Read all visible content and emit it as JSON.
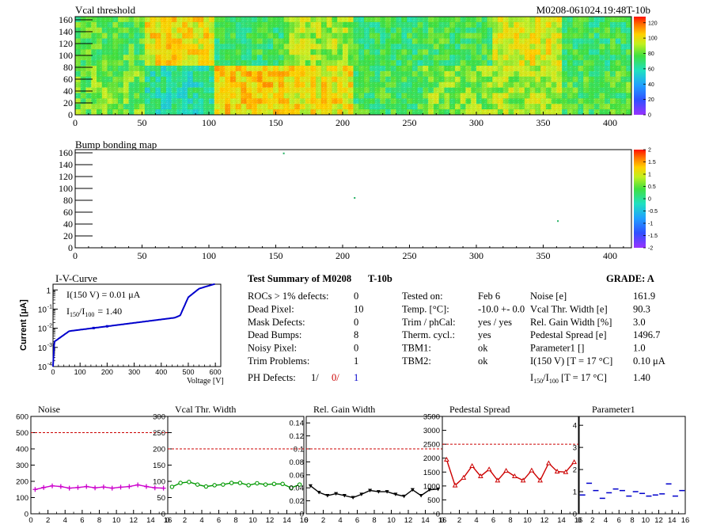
{
  "header": {
    "vcal_title": "Vcal threshold",
    "module_id": "M0208-061024.19:48T-10b",
    "bump_title": "Bump bonding map"
  },
  "maps": {
    "x_ticks": [
      "0",
      "50",
      "100",
      "150",
      "200",
      "250",
      "300",
      "350",
      "400"
    ],
    "x_tick_values": [
      0,
      50,
      100,
      150,
      200,
      250,
      300,
      350,
      400
    ],
    "x_range": [
      0,
      416
    ],
    "y_ticks": [
      "0",
      "20",
      "40",
      "60",
      "80",
      "100",
      "120",
      "140",
      "160"
    ],
    "y_tick_values": [
      0,
      20,
      40,
      60,
      80,
      100,
      120,
      140,
      160
    ],
    "y_range": [
      0,
      160
    ],
    "vcal_scale_ticks": [
      "120",
      "100",
      "80",
      "60",
      "40",
      "20",
      "0"
    ],
    "vcal_scale_values": [
      120,
      100,
      80,
      60,
      40,
      20,
      0
    ],
    "vcal_scale_range": [
      0,
      128
    ],
    "bump_scale_ticks": [
      "2",
      "1.5",
      "1",
      "0.5",
      "0",
      "-0.5",
      "-1",
      "-1.5",
      "-2"
    ],
    "bump_scale_values": [
      2,
      1.5,
      1,
      0.5,
      0,
      -0.5,
      -1,
      -1.5,
      -2
    ],
    "bump_scale_range": [
      -2,
      2
    ],
    "rocs_top_level": [
      75,
      95,
      70,
      85,
      70,
      72,
      92,
      70
    ],
    "rocs_bottom_level": [
      78,
      62,
      98,
      95,
      72,
      80,
      84,
      74
    ],
    "bump_points": [
      [
        156,
        159
      ],
      [
        209,
        84
      ],
      [
        361,
        45
      ]
    ],
    "colors": {
      "red": "#ff2a00",
      "orange": "#ff9a00",
      "yellow": "#f0e030",
      "green": "#40d040"
    }
  },
  "iv": {
    "title": "I-V-Curve",
    "ylabel": "Current [μA]",
    "xlabel": "Voltage [V]",
    "i150": "I(150 V) = 0.01 μA",
    "ratio_label": "I",
    "ratio_sub1": "150",
    "ratio_slash": "/I",
    "ratio_sub2": "100",
    "ratio_value": "=  1.40",
    "x_ticks": [
      "0",
      "100",
      "200",
      "300",
      "400",
      "500",
      "600"
    ],
    "y_ticks": [
      "10",
      "10",
      "10",
      "10",
      "1"
    ],
    "y_exps": [
      "-4",
      "-3",
      "-2",
      "-1",
      ""
    ],
    "color": "#0000cc"
  },
  "summary": {
    "title": "Test Summary of M0208",
    "tag": "T-10b",
    "grade_label": "GRADE:  A",
    "rows": [
      {
        "label": "ROCs > 1% defects:",
        "value": "0"
      },
      {
        "label": "Dead Pixel:",
        "value": "10"
      },
      {
        "label": "Mask Defects:",
        "value": "0"
      },
      {
        "label": "Dead Bumps:",
        "value": "8"
      },
      {
        "label": "Noisy Pixel:",
        "value": "0"
      },
      {
        "label": "Trim Problems:",
        "value": "1"
      }
    ],
    "ph_label": "PH Defects:",
    "ph_values": [
      "1/",
      "0/",
      "1"
    ],
    "ph_colors": [
      "#000000",
      "#cc0000",
      "#0000cc"
    ],
    "mid": [
      {
        "label": "Tested on:",
        "value": "Feb 6"
      },
      {
        "label": "Temp. [°C]:",
        "value": "-10.0 +- 0.0"
      },
      {
        "label": "Trim / phCal:",
        "value": "yes / yes"
      },
      {
        "label": "Therm. cycl.:",
        "value": "yes"
      },
      {
        "label": "TBM1:",
        "value": "ok"
      },
      {
        "label": "TBM2:",
        "value": "ok"
      }
    ],
    "right": [
      {
        "label": "Noise [e]",
        "value": "161.9"
      },
      {
        "label": "Vcal Thr. Width [e]",
        "value": "90.3"
      },
      {
        "label": "Rel. Gain Width [%]",
        "value": "3.0"
      },
      {
        "label": "Pedestal Spread [e]",
        "value": "1496.7"
      },
      {
        "label": "Parameter1 []",
        "value": "1.0"
      },
      {
        "label": "I(150 V)  [T = 17 °C]",
        "value": "0.10 μA"
      }
    ],
    "ratio_row": {
      "pre": "I",
      "sub1": "150",
      "mid": "/I",
      "sub2": "100",
      "post": "  [T = 17 °C]",
      "value": "1.40"
    }
  },
  "chart_data": [
    {
      "type": "line",
      "title": "Noise",
      "x": [
        0,
        1,
        2,
        3,
        4,
        5,
        6,
        7,
        8,
        9,
        10,
        11,
        12,
        13,
        14,
        15
      ],
      "values": [
        150,
        162,
        172,
        168,
        158,
        162,
        168,
        160,
        165,
        158,
        164,
        168,
        178,
        168,
        160,
        158
      ],
      "reference": 500,
      "ylim": [
        0,
        600
      ],
      "xlim": [
        0,
        16
      ],
      "yticks": [
        "0",
        "100",
        "200",
        "300",
        "400",
        "500",
        "600"
      ],
      "ytick_values": [
        0,
        100,
        200,
        300,
        400,
        500,
        600
      ],
      "xticks": [
        "0",
        "2",
        "4",
        "6",
        "8",
        "10",
        "12",
        "14",
        "16"
      ],
      "color": "#cc00cc",
      "marker": "cross"
    },
    {
      "type": "line",
      "title": "Vcal Thr. Width",
      "x": [
        0,
        1,
        2,
        3,
        4,
        5,
        6,
        7,
        8,
        9,
        10,
        11,
        12,
        13,
        14,
        15
      ],
      "values": [
        83,
        95,
        98,
        90,
        84,
        88,
        90,
        95,
        95,
        88,
        94,
        90,
        92,
        92,
        80,
        90
      ],
      "reference": 200,
      "ylim": [
        0,
        300
      ],
      "xlim": [
        0,
        16
      ],
      "yticks": [
        "0",
        "50",
        "100",
        "150",
        "200",
        "250",
        "300"
      ],
      "ytick_values": [
        0,
        50,
        100,
        150,
        200,
        250,
        300
      ],
      "xticks": [
        "0",
        "2",
        "4",
        "6",
        "8",
        "10",
        "12",
        "14",
        "16"
      ],
      "color": "#009900",
      "marker": "circle"
    },
    {
      "type": "line",
      "title": "Rel. Gain Width",
      "x": [
        0,
        1,
        2,
        3,
        4,
        5,
        6,
        7,
        8,
        9,
        10,
        11,
        12,
        13,
        14,
        15
      ],
      "values": [
        0.043,
        0.033,
        0.028,
        0.031,
        0.028,
        0.025,
        0.03,
        0.036,
        0.034,
        0.034,
        0.03,
        0.027,
        0.037,
        0.028,
        0.037,
        0.038
      ],
      "reference": 0.1,
      "ylim": [
        0,
        0.15
      ],
      "xlim": [
        0,
        16
      ],
      "yticks": [
        "0",
        "0.02",
        "0.04",
        "0.06",
        "0.08",
        "0.1",
        "0.12",
        "0.14"
      ],
      "ytick_values": [
        0,
        0.02,
        0.04,
        0.06,
        0.08,
        0.1,
        0.12,
        0.14
      ],
      "xticks": [
        "0",
        "2",
        "4",
        "6",
        "8",
        "10",
        "12",
        "14",
        "16"
      ],
      "color": "#000000",
      "marker": "triangle-down"
    },
    {
      "type": "line",
      "title": "Pedestal Spread",
      "x": [
        0,
        1,
        2,
        3,
        4,
        5,
        6,
        7,
        8,
        9,
        10,
        11,
        12,
        13,
        14,
        15
      ],
      "values": [
        1950,
        1020,
        1300,
        1720,
        1350,
        1600,
        1200,
        1550,
        1350,
        1200,
        1560,
        1200,
        1820,
        1520,
        1500,
        1860
      ],
      "reference": 2500,
      "ylim": [
        0,
        3500
      ],
      "xlim": [
        0,
        16
      ],
      "yticks": [
        "0",
        "500",
        "1000",
        "1500",
        "2000",
        "2500",
        "3000",
        "3500"
      ],
      "ytick_values": [
        0,
        500,
        1000,
        1500,
        2000,
        2500,
        3000,
        3500
      ],
      "xticks": [
        "0",
        "2",
        "4",
        "6",
        "8",
        "10",
        "12",
        "14",
        "16"
      ],
      "color": "#cc0000",
      "marker": "triangle-up"
    },
    {
      "type": "scatter",
      "title": "Parameter1",
      "x": [
        0,
        1,
        2,
        3,
        4,
        5,
        6,
        7,
        8,
        9,
        10,
        11,
        12,
        13,
        14,
        15
      ],
      "values": [
        0.85,
        1.38,
        1.05,
        0.7,
        0.95,
        1.12,
        1.05,
        0.8,
        1.0,
        0.92,
        0.8,
        0.85,
        0.9,
        1.35,
        0.8,
        1.05
      ],
      "ylim": [
        0,
        4.4
      ],
      "xlim": [
        0,
        16
      ],
      "yticks": [
        "0",
        "1",
        "2",
        "3",
        "4"
      ],
      "ytick_values": [
        0,
        1,
        2,
        3,
        4
      ],
      "xticks": [
        "0",
        "2",
        "4",
        "6",
        "8",
        "10",
        "12",
        "14",
        "16"
      ],
      "color": "#0000cc",
      "marker": "dash"
    }
  ]
}
